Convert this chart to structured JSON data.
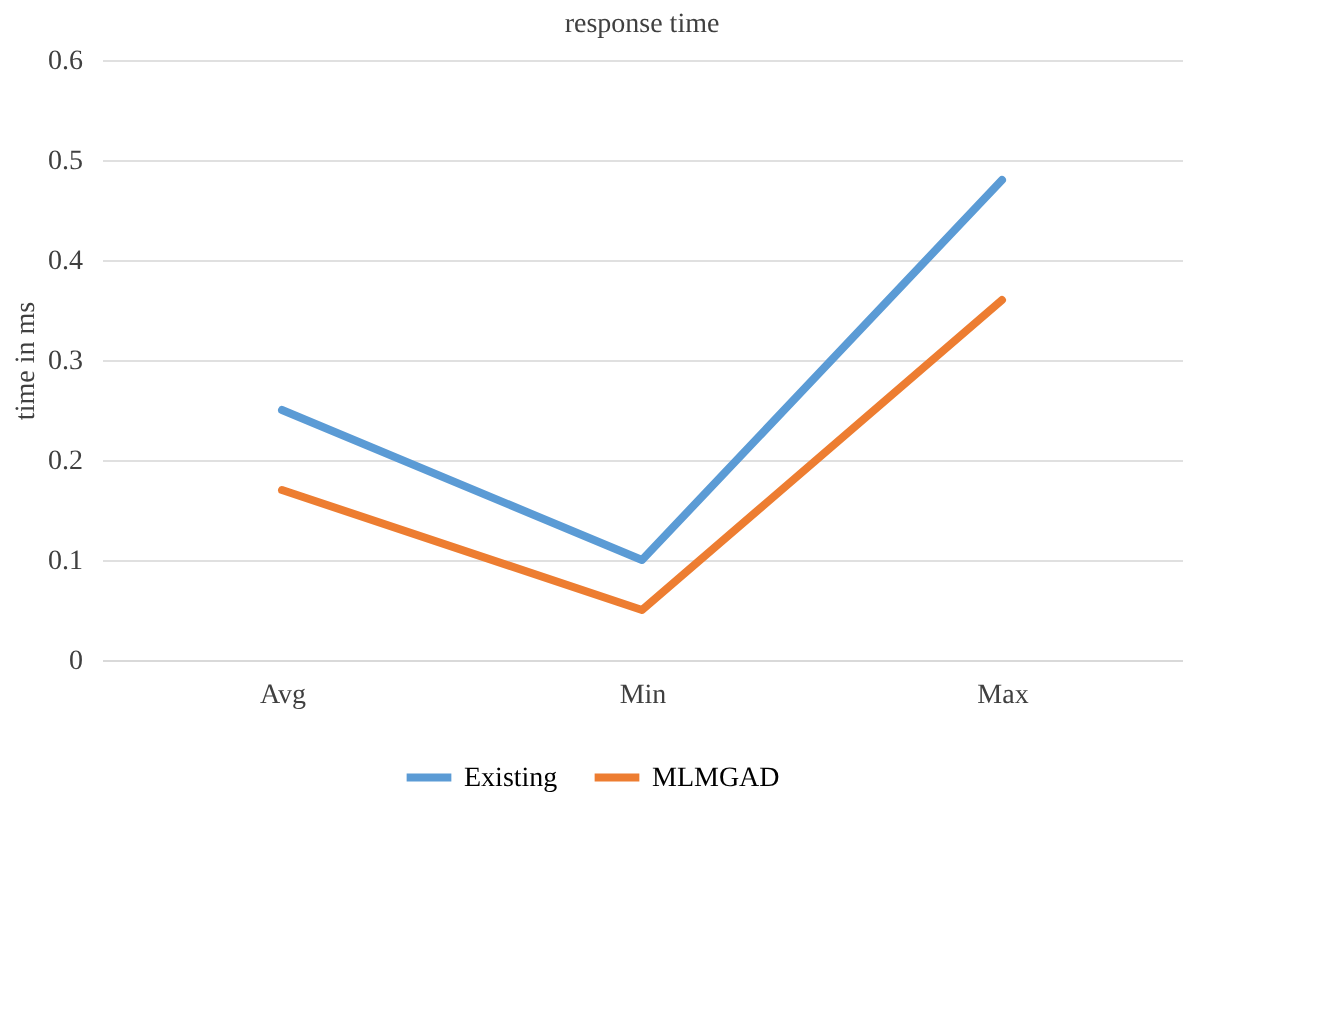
{
  "chart_data": {
    "type": "line",
    "title": "response time",
    "ylabel": "time in ms",
    "categories": [
      "Avg",
      "Min",
      "Max"
    ],
    "series": [
      {
        "name": "Existing",
        "color": "#5b9bd5",
        "values": [
          0.25,
          0.1,
          0.48
        ]
      },
      {
        "name": "MLMGAD",
        "color": "#ed7d31",
        "values": [
          0.17,
          0.05,
          0.36
        ]
      }
    ],
    "ylim": [
      0,
      0.6
    ],
    "yticks": [
      0,
      0.1,
      0.2,
      0.3,
      0.4,
      0.5,
      0.6
    ],
    "grid": "y",
    "legend": "bottom",
    "marker": "none",
    "line_style": "solid"
  }
}
